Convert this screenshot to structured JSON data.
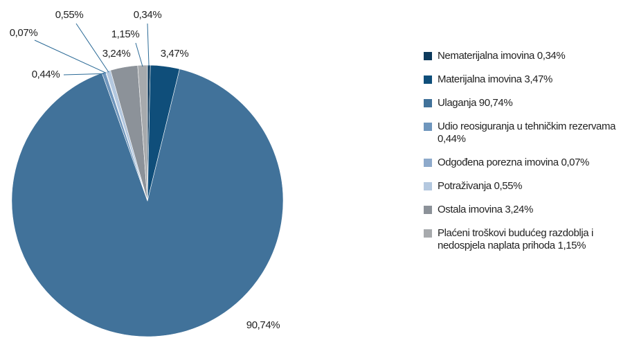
{
  "chart_data": {
    "type": "pie",
    "categories": [
      "Nematerijalna imovina 0,34%",
      "Materijalna imovina 3,47%",
      "Ulaganja 90,74%",
      "Udio reosiguranja u tehničkim rezervama 0,44%",
      "Odgođena porezna imovina 0,07%",
      "Potraživanja 0,55%",
      "Ostala imovina 3,24%",
      "Plaćeni troškovi budućeg razdoblja i nedospjela naplata prihoda 1,15%"
    ],
    "values": [
      0.34,
      3.47,
      90.74,
      0.44,
      0.07,
      0.55,
      3.24,
      1.15
    ],
    "value_labels": [
      "0,34%",
      "3,47%",
      "90,74%",
      "0,44%",
      "0,07%",
      "0,55%",
      "3,24%",
      "1,15%"
    ],
    "colors": [
      "#0d3a5c",
      "#0f4e7a",
      "#41729a",
      "#6f96bd",
      "#8eaacb",
      "#b4c8df",
      "#8c9299",
      "#a7aaad"
    ],
    "legend": "right"
  }
}
